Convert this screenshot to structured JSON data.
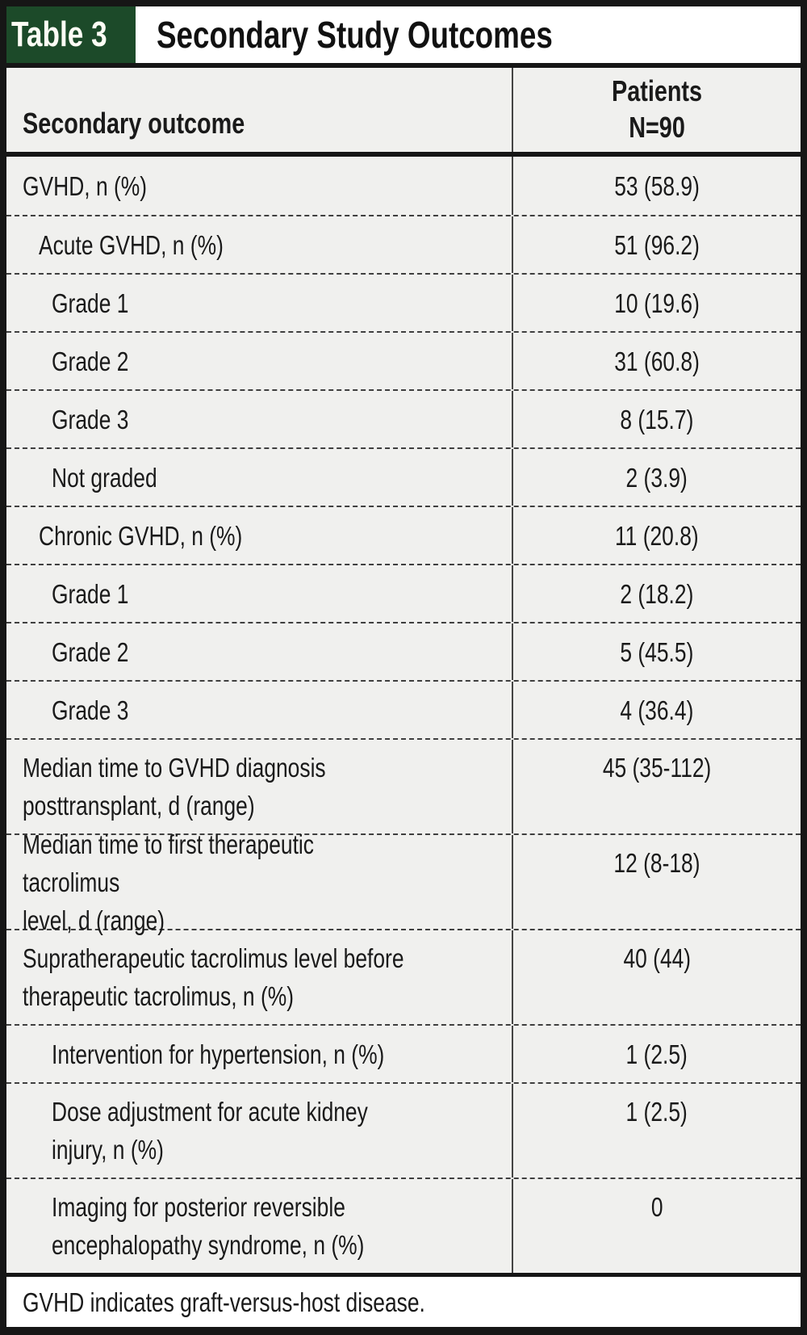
{
  "title": {
    "tag": "Table 3",
    "text": "Secondary Study Outcomes"
  },
  "table": {
    "col1_header": "Secondary outcome",
    "col2_header": "Patients\nN=90",
    "rows": [
      {
        "label": "GVHD, n (%)",
        "value": "53 (58.9)",
        "indent": 0
      },
      {
        "label": "Acute GVHD, n (%)",
        "value": "51 (96.2)",
        "indent": 1
      },
      {
        "label": "Grade 1",
        "value": "10 (19.6)",
        "indent": 2
      },
      {
        "label": "Grade 2",
        "value": "31 (60.8)",
        "indent": 2
      },
      {
        "label": "Grade 3",
        "value": "8 (15.7)",
        "indent": 2
      },
      {
        "label": "Not graded",
        "value": "2 (3.9)",
        "indent": 2
      },
      {
        "label": "Chronic GVHD, n (%)",
        "value": "11 (20.8)",
        "indent": 1
      },
      {
        "label": "Grade 1",
        "value": "2 (18.2)",
        "indent": 2
      },
      {
        "label": "Grade 2",
        "value": "5 (45.5)",
        "indent": 2
      },
      {
        "label": "Grade 3",
        "value": "4 (36.4)",
        "indent": 2
      },
      {
        "label": "Median time to GVHD diagnosis\nposttransplant, d (range)",
        "value": "45 (35-112)",
        "indent": 0
      },
      {
        "label": "Median time to first therapeutic tacrolimus\nlevel, d (range)",
        "value": "12 (8-18)",
        "indent": 0
      },
      {
        "label": "Supratherapeutic tacrolimus level before\ntherapeutic tacrolimus, n (%)",
        "value": "40 (44)",
        "indent": 0
      },
      {
        "label": "Intervention for hypertension, n (%)",
        "value": "1 (2.5)",
        "indent": 2
      },
      {
        "label": "Dose adjustment for acute kidney\ninjury, n (%)",
        "value": "1 (2.5)",
        "indent": 2
      },
      {
        "label": "Imaging for posterior reversible\nencephalopathy syndrome, n (%)",
        "value": "0",
        "indent": 2
      }
    ]
  },
  "footnote": "GVHD indicates graft-versus-host disease.",
  "colors": {
    "tag_green": "#1c4a29",
    "row_background": "#f0f0ee",
    "border_black": "#161616",
    "text": "#1a1a1a"
  },
  "chart_data": {
    "type": "table",
    "title": "Table 3  Secondary Study Outcomes",
    "columns": [
      "Secondary outcome",
      "Patients N=90"
    ],
    "rows": [
      [
        "GVHD, n (%)",
        "53 (58.9)"
      ],
      [
        "Acute GVHD, n (%)",
        "51 (96.2)"
      ],
      [
        "Grade 1",
        "10 (19.6)"
      ],
      [
        "Grade 2",
        "31 (60.8)"
      ],
      [
        "Grade 3",
        "8 (15.7)"
      ],
      [
        "Not graded",
        "2 (3.9)"
      ],
      [
        "Chronic GVHD, n (%)",
        "11 (20.8)"
      ],
      [
        "Grade 1",
        "2 (18.2)"
      ],
      [
        "Grade 2",
        "5 (45.5)"
      ],
      [
        "Grade 3",
        "4 (36.4)"
      ],
      [
        "Median time to GVHD diagnosis posttransplant, d (range)",
        "45 (35-112)"
      ],
      [
        "Median time to first therapeutic tacrolimus level, d (range)",
        "12 (8-18)"
      ],
      [
        "Supratherapeutic tacrolimus level before therapeutic tacrolimus, n (%)",
        "40 (44)"
      ],
      [
        "Intervention for hypertension, n (%)",
        "1 (2.5)"
      ],
      [
        "Dose adjustment for acute kidney injury, n (%)",
        "1 (2.5)"
      ],
      [
        "Imaging for posterior reversible encephalopathy syndrome, n (%)",
        "0"
      ]
    ]
  }
}
